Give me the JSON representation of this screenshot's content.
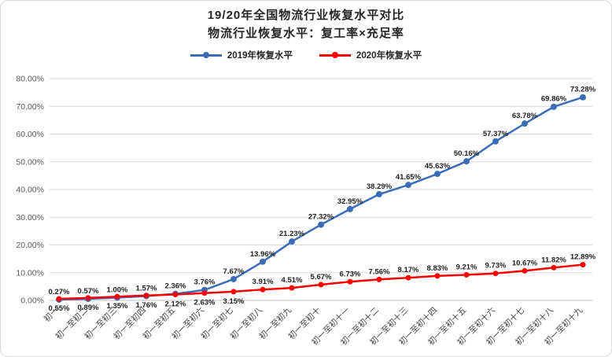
{
  "chart": {
    "title_line1": "19/20年全国物流行业恢复水平对比",
    "title_line2": "物流行业恢复水平：复工率×充足率"
  },
  "chart_data": {
    "type": "line",
    "title": "19/20年全国物流行业恢复水平对比",
    "subtitle": "物流行业恢复水平：复工率×充足率",
    "categories": [
      "初一",
      "初一至初二",
      "初一至初三",
      "初一至初四",
      "初一至初五",
      "初一至初六",
      "初一至初七",
      "初一至初八",
      "初一至初九",
      "初一至初十",
      "初一至初十一",
      "初一至初十二",
      "初一至初十三",
      "初一至初十四",
      "初一至初十五",
      "初一至初十六",
      "初一至初十七",
      "初一至初十八",
      "初一至初十九"
    ],
    "series": [
      {
        "name": "2019年恢复水平",
        "color": "#3B6CB8",
        "values": [
          0.27,
          0.57,
          1.0,
          1.57,
          2.36,
          3.76,
          7.67,
          13.96,
          21.23,
          27.32,
          32.95,
          38.29,
          41.65,
          45.63,
          50.16,
          57.37,
          63.78,
          69.86,
          73.28
        ]
      },
      {
        "name": "2020年恢复水平",
        "color": "#FF0000",
        "values": [
          0.55,
          0.89,
          1.35,
          1.76,
          2.12,
          2.63,
          3.15,
          3.91,
          4.51,
          5.67,
          6.73,
          7.56,
          8.17,
          8.83,
          9.21,
          9.73,
          10.67,
          11.82,
          12.89
        ]
      }
    ],
    "ylim": [
      0,
      80
    ],
    "ytick_step": 10,
    "ytick_labels": [
      "0.00%",
      "10.00%",
      "20.00%",
      "30.00%",
      "40.00%",
      "50.00%",
      "60.00%",
      "70.00%",
      "80.00%"
    ],
    "value_format": "0.00%",
    "grid": true,
    "legend_position": "top"
  },
  "colors": {
    "grid": "#D9D9D9",
    "axis": "#BFBFBF",
    "tick_text": "#595959",
    "label_text": "#1F1F1F"
  }
}
